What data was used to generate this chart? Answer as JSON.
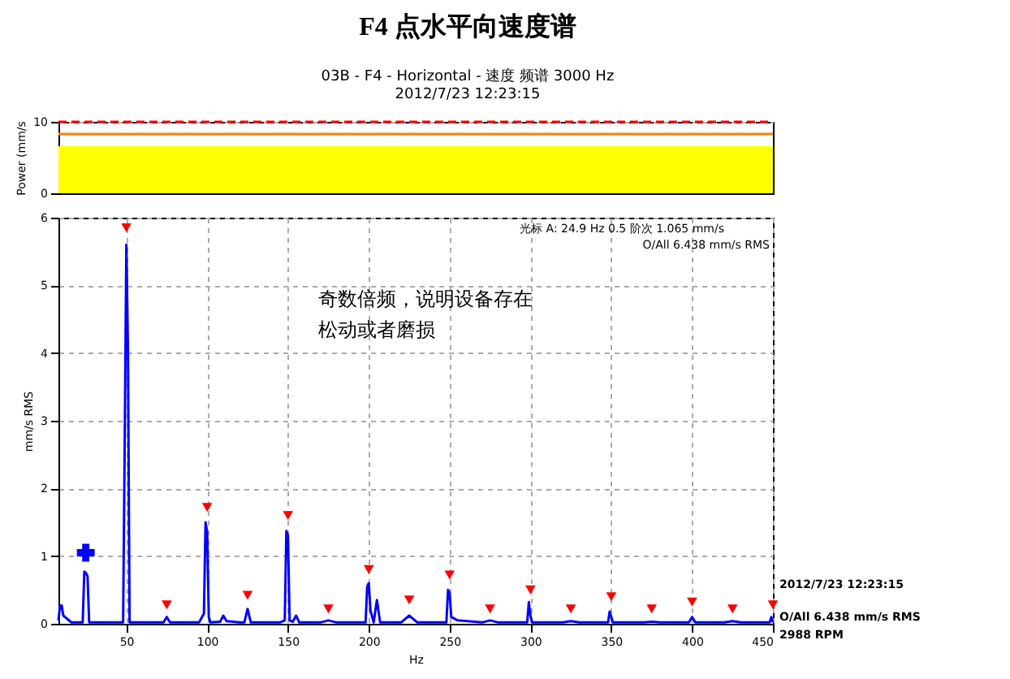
{
  "chart_data": [
    {
      "type": "line",
      "title": "F4 点水平向速度谱",
      "subtitle": "03B - F4 - Horizontal - 速度 频谱 3000 Hz\n2012/7/23 12:23:15",
      "ylabel": "Power (mm/s",
      "xlim": [
        8,
        450
      ],
      "ylim": [
        0,
        10
      ],
      "yticks": [
        0,
        10
      ],
      "tick_labels": "y",
      "grid": true,
      "bands": [
        {
          "axis": "y",
          "from": 0,
          "to": 6.6,
          "color": "#ffff00"
        }
      ],
      "ref_lines": [
        {
          "axis": "y",
          "value": 10,
          "color": "#ff0000",
          "line_style": "dashed"
        },
        {
          "axis": "y",
          "value": 8.3,
          "color": "#ff8000",
          "line_style": "solid"
        }
      ]
    },
    {
      "type": "line",
      "xlabel": "Hz",
      "ylabel": "mm/s RMS",
      "xlim": [
        8,
        450
      ],
      "xticks": [
        50,
        100,
        150,
        200,
        250,
        300,
        350,
        400,
        450
      ],
      "ylim": [
        0,
        6
      ],
      "yticks": [
        0,
        1,
        2,
        3,
        4,
        5,
        6
      ],
      "grid": true,
      "line_style": "solid",
      "marker": "none",
      "annotations": [
        "光标 A:      24.9 Hz      0.5 阶次      1.065 mm/s",
        "O/All 6.438 mm/s RMS",
        "奇数倍频，说明设备存在松动或者磨损",
        "2012/7/23 12:23:15",
        "O/All 6.438 mm/s RMS",
        "2988 RPM"
      ],
      "series": [
        {
          "color": "#0000ff",
          "x": [
            8,
            9,
            10,
            11,
            12,
            14,
            16,
            20,
            23,
            24,
            25,
            26,
            27,
            30,
            40,
            48,
            49,
            50,
            51,
            52,
            60,
            73,
            75,
            77,
            95,
            98,
            99,
            100,
            101,
            102,
            108,
            110,
            112,
            120,
            123,
            125,
            127,
            145,
            148,
            149,
            150,
            151,
            153,
            155,
            157,
            170,
            175,
            180,
            198,
            199,
            200,
            201,
            203,
            205,
            207,
            220,
            225,
            230,
            248,
            249,
            250,
            251,
            255,
            270,
            275,
            280,
            298,
            299,
            300,
            301,
            320,
            325,
            330,
            348,
            349,
            350,
            351,
            370,
            375,
            380,
            398,
            400,
            402,
            420,
            425,
            430,
            448,
            449,
            450
          ],
          "values": [
            0.05,
            0.27,
            0.27,
            0.12,
            0.1,
            0.06,
            0.02,
            0.02,
            0.02,
            0.77,
            0.75,
            0.7,
            0.02,
            0.02,
            0.02,
            0.02,
            2.7,
            5.6,
            4.05,
            0.02,
            0.02,
            0.02,
            0.1,
            0.02,
            0.02,
            0.15,
            1.5,
            1.35,
            0.1,
            0.02,
            0.03,
            0.12,
            0.04,
            0.02,
            0.02,
            0.22,
            0.02,
            0.02,
            0.05,
            1.37,
            1.3,
            0.05,
            0.03,
            0.12,
            0.02,
            0.02,
            0.05,
            0.02,
            0.02,
            0.55,
            0.6,
            0.2,
            0.02,
            0.35,
            0.02,
            0.02,
            0.12,
            0.02,
            0.02,
            0.5,
            0.45,
            0.1,
            0.05,
            0.02,
            0.05,
            0.02,
            0.02,
            0.32,
            0.12,
            0.02,
            0.02,
            0.04,
            0.02,
            0.02,
            0.18,
            0.1,
            0.02,
            0.02,
            0.03,
            0.02,
            0.02,
            0.1,
            0.02,
            0.02,
            0.04,
            0.02,
            0.02,
            0.1,
            0.02
          ]
        },
        {
          "type": "scatter",
          "marker": "triangle",
          "color": "#ff0000",
          "x": [
            50,
            75,
            100,
            125,
            150,
            175,
            200,
            225,
            250,
            275,
            300,
            325,
            350,
            375,
            400,
            425,
            450
          ],
          "values": [
            5.85,
            0.28,
            1.72,
            0.42,
            1.6,
            0.22,
            0.8,
            0.35,
            0.72,
            0.22,
            0.5,
            0.22,
            0.4,
            0.22,
            0.32,
            0.22,
            0.28
          ]
        },
        {
          "type": "scatter",
          "marker": "cross",
          "color": "#0000ff",
          "x": [
            24.9
          ],
          "values": [
            1.05
          ]
        }
      ]
    }
  ]
}
